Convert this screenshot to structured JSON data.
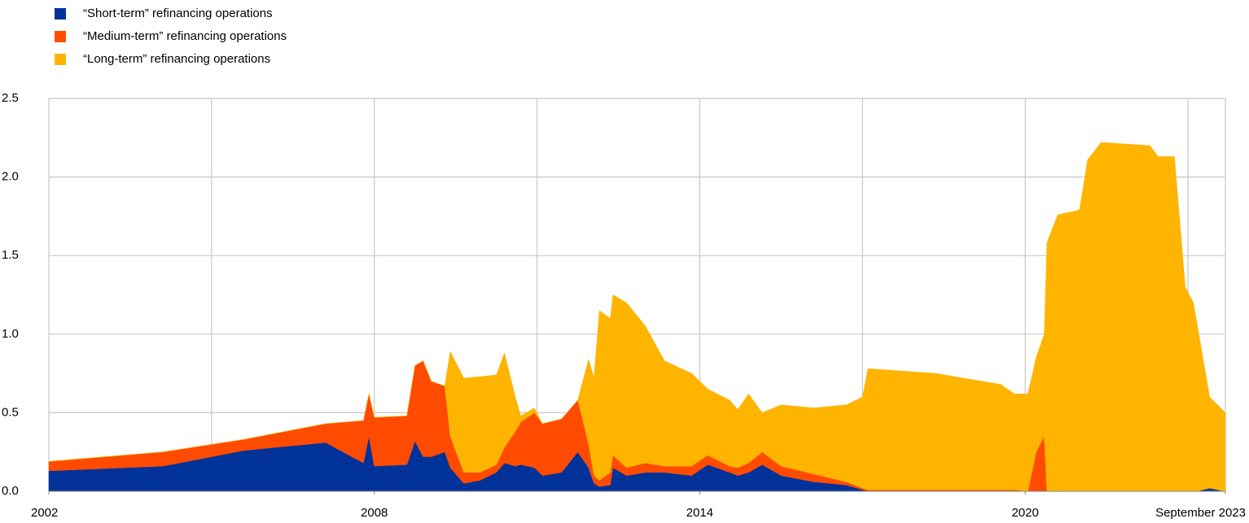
{
  "chart_data": {
    "type": "stacked_area",
    "x": [
      2002.0,
      2004.1,
      2005.6,
      2007.1,
      2007.8,
      2007.9,
      2008.0,
      2008.6,
      2008.75,
      2008.9,
      2009.05,
      2009.3,
      2009.4,
      2009.65,
      2009.95,
      2010.25,
      2010.4,
      2010.6,
      2010.7,
      2010.95,
      2011.1,
      2011.45,
      2011.75,
      2011.95,
      2012.05,
      2012.15,
      2012.35,
      2012.4,
      2012.65,
      2013.0,
      2013.35,
      2013.85,
      2014.15,
      2014.55,
      2014.7,
      2014.9,
      2015.15,
      2015.5,
      2016.1,
      2016.7,
      2017.0,
      2017.1,
      2018.35,
      2019.55,
      2019.8,
      2020.05,
      2020.2,
      2020.35,
      2020.4,
      2020.6,
      2021.0,
      2021.15,
      2021.4,
      2022.3,
      2022.45,
      2022.75,
      2022.95,
      2023.1,
      2023.15,
      2023.4,
      2023.69
    ],
    "series": [
      {
        "name": "“Short-term” refinancing operations",
        "color": "#003299",
        "values": [
          0.13,
          0.16,
          0.26,
          0.31,
          0.18,
          0.35,
          0.16,
          0.17,
          0.32,
          0.22,
          0.22,
          0.25,
          0.15,
          0.05,
          0.07,
          0.12,
          0.18,
          0.16,
          0.17,
          0.15,
          0.1,
          0.12,
          0.25,
          0.15,
          0.05,
          0.03,
          0.04,
          0.15,
          0.1,
          0.12,
          0.12,
          0.1,
          0.17,
          0.12,
          0.1,
          0.12,
          0.17,
          0.1,
          0.06,
          0.04,
          0.01,
          0,
          0,
          0,
          0,
          0,
          0,
          0,
          0,
          0,
          0,
          0,
          0,
          0,
          0,
          0,
          0,
          0,
          0,
          0.02,
          0
        ]
      },
      {
        "name": "“Medium-term” refinancing operations",
        "color": "#ff4b00",
        "values": [
          0.06,
          0.09,
          0.07,
          0.12,
          0.27,
          0.27,
          0.31,
          0.31,
          0.48,
          0.61,
          0.48,
          0.42,
          0.2,
          0.07,
          0.05,
          0.05,
          0.1,
          0.22,
          0.27,
          0.35,
          0.33,
          0.34,
          0.33,
          0.15,
          0.05,
          0.04,
          0.08,
          0.08,
          0.05,
          0.06,
          0.04,
          0.06,
          0.06,
          0.04,
          0.05,
          0.06,
          0.08,
          0.06,
          0.05,
          0.02,
          0.01,
          0.01,
          0.01,
          0.01,
          0.01,
          0,
          0.25,
          0.35,
          0,
          0,
          0,
          0,
          0,
          0,
          0,
          0,
          0,
          0,
          0,
          0,
          0
        ]
      },
      {
        "name": "“Long-term” refinancing operations",
        "color": "#ffb400",
        "values": [
          0,
          0,
          0,
          0,
          0,
          0,
          0,
          0,
          0,
          0,
          0,
          0,
          0.54,
          0.6,
          0.61,
          0.57,
          0.6,
          0.22,
          0.04,
          0.03,
          0,
          0,
          0,
          0.54,
          0.62,
          1.08,
          0.98,
          1.02,
          1.05,
          0.87,
          0.67,
          0.59,
          0.42,
          0.42,
          0.37,
          0.44,
          0.25,
          0.39,
          0.42,
          0.49,
          0.58,
          0.77,
          0.74,
          0.67,
          0.61,
          0.62,
          0.6,
          0.65,
          1.58,
          1.76,
          1.79,
          2.11,
          2.22,
          2.2,
          2.13,
          2.13,
          1.3,
          1.2,
          1.1,
          0.58,
          0.5
        ]
      }
    ],
    "xlim": [
      2002,
      2023.69
    ],
    "xticks": [
      2002,
      2008,
      2014,
      2020,
      {
        "value": 2023.69,
        "label": "September 2023"
      }
    ],
    "xgrid": [
      2005,
      2008,
      2011,
      2014,
      2017,
      2020,
      2023
    ],
    "ylim": [
      0,
      2.5
    ],
    "yticks": [
      {
        "value": 0,
        "label": "0.0"
      },
      0.5,
      {
        "value": 1,
        "label": "1.0"
      },
      1.5,
      {
        "value": 2,
        "label": "2.0"
      },
      2.5
    ],
    "grid": true
  }
}
